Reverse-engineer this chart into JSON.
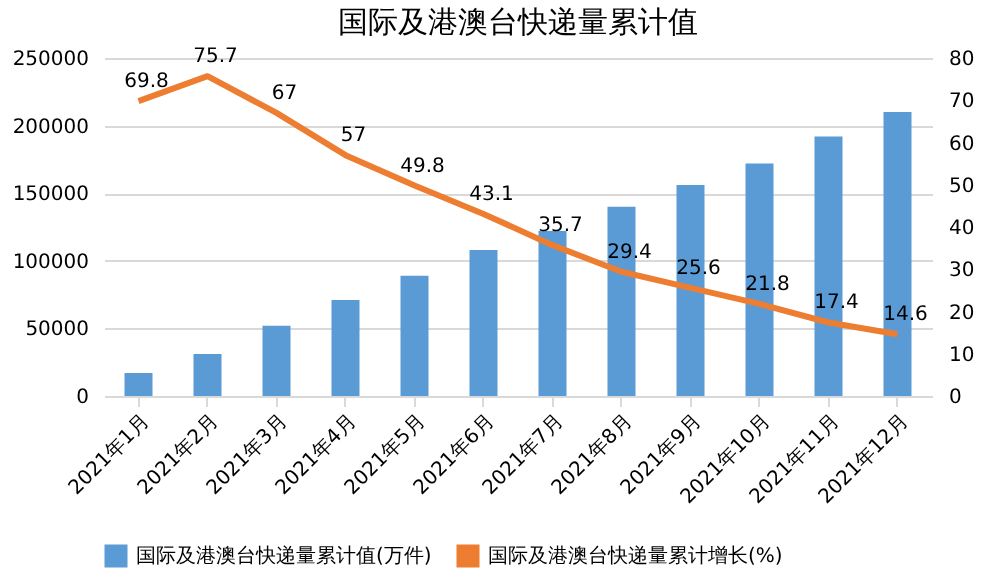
{
  "chart_data": {
    "type": "bar",
    "title": "国际及港澳台快递量累计值",
    "categories": [
      "2021年1月",
      "2021年2月",
      "2021年3月",
      "2021年4月",
      "2021年5月",
      "2021年6月",
      "2021年7月",
      "2021年8月",
      "2021年9月",
      "2021年10月",
      "2021年11月",
      "2021年12月"
    ],
    "series": [
      {
        "name": "国际及港澳台快递量累计值(万件)",
        "color": "#5b9bd5",
        "values": [
          17000,
          31000,
          52000,
          71000,
          89000,
          108000,
          122000,
          140000,
          156000,
          172000,
          192000,
          210000
        ]
      },
      {
        "name": "国际及港澳台快递量累计增长(%)",
        "type": "line",
        "axis": "y2",
        "color": "#ed7d31",
        "values": [
          69.8,
          75.7,
          67,
          57,
          49.8,
          43.1,
          35.7,
          29.4,
          25.6,
          21.8,
          17.4,
          14.6
        ],
        "data_labels": true
      }
    ],
    "ylim": [
      0,
      250000
    ],
    "yticks": [
      0,
      50000,
      100000,
      150000,
      200000,
      250000
    ],
    "y2lim": [
      0,
      80
    ],
    "y2ticks": [
      0,
      10,
      20,
      30,
      40,
      50,
      60,
      70,
      80
    ],
    "grid": "y",
    "legend": "bottom",
    "marker": "none",
    "line_style": "solid"
  }
}
